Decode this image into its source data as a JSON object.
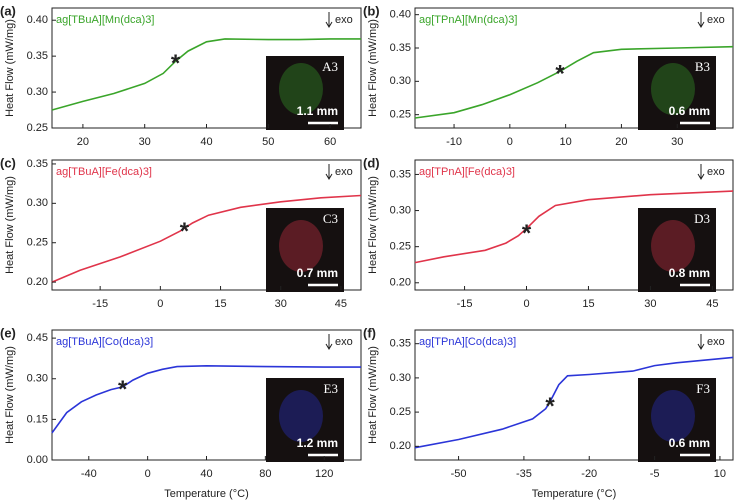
{
  "chart_data": [
    {
      "type": "line",
      "panel": "(a)",
      "title": "ag[TBuA][Mn(dca)3]",
      "color": "#3aa52a",
      "y_label": "Heat Flow (mW/mg)",
      "exo_label": "exo",
      "inset_label": "A3",
      "scale_label": "1.1 mm",
      "x": [
        15,
        20,
        25,
        30,
        33,
        35,
        37,
        40,
        43,
        50,
        55,
        60,
        65
      ],
      "values": [
        0.275,
        0.287,
        0.298,
        0.312,
        0.326,
        0.343,
        0.357,
        0.37,
        0.374,
        0.373,
        0.373,
        0.374,
        0.374
      ],
      "xlim": [
        15,
        65
      ],
      "xticks": [
        20,
        30,
        40,
        50,
        60
      ],
      "ylim": [
        0.25,
        0.417
      ],
      "yticks": [
        0.25,
        {
          "value": 0.3,
          "label": "0.30"
        },
        0.35,
        {
          "value": 0.4,
          "label": "0.40"
        }
      ],
      "annotations": [
        {
          "text": "*",
          "x": 35,
          "y": 0.344
        }
      ]
    },
    {
      "type": "line",
      "panel": "(b)",
      "title": "ag[TPnA][Mn(dca)3]",
      "color": "#3aa52a",
      "y_label": "Heat Flow (mW/mg)",
      "exo_label": "exo",
      "inset_label": "B3",
      "scale_label": "0.6 mm",
      "x": [
        -17,
        -10,
        -5,
        0,
        5,
        9,
        12,
        15,
        20,
        30,
        40
      ],
      "values": [
        0.245,
        0.253,
        0.265,
        0.28,
        0.298,
        0.315,
        0.33,
        0.343,
        0.348,
        0.35,
        0.352
      ],
      "xlim": [
        -17,
        40
      ],
      "xticks": [
        -10,
        0,
        10,
        20,
        30
      ],
      "ylim": [
        0.23,
        0.41
      ],
      "yticks": [
        0.25,
        {
          "value": 0.3,
          "label": "0.30"
        },
        0.35,
        {
          "value": 0.4,
          "label": "0.40"
        }
      ],
      "annotations": [
        {
          "text": "*",
          "x": 9,
          "y": 0.315
        }
      ]
    },
    {
      "type": "line",
      "panel": "(c)",
      "title": "ag[TBuA][Fe(dca)3]",
      "color": "#e0344a",
      "y_label": "Heat Flow (mW/mg)",
      "exo_label": "exo",
      "inset_label": "C3",
      "scale_label": "0.7 mm",
      "x": [
        -27,
        -20,
        -10,
        0,
        5,
        8,
        12,
        20,
        30,
        40,
        50
      ],
      "values": [
        0.2,
        0.215,
        0.232,
        0.252,
        0.265,
        0.275,
        0.285,
        0.295,
        0.302,
        0.307,
        0.31
      ],
      "xlim": [
        -27,
        50
      ],
      "xticks": [
        -15,
        0,
        15,
        30,
        45
      ],
      "ylim": [
        0.19,
        0.355
      ],
      "yticks": [
        {
          "value": 0.2,
          "label": "0.20"
        },
        0.25,
        {
          "value": 0.3,
          "label": "0.30"
        },
        0.35
      ],
      "annotations": [
        {
          "text": "*",
          "x": 6,
          "y": 0.268
        }
      ]
    },
    {
      "type": "line",
      "panel": "(d)",
      "title": "ag[TPnA][Fe(dca)3]",
      "color": "#e0344a",
      "y_label": "Heat Flow (mW/mg)",
      "exo_label": "exo",
      "inset_label": "D3",
      "scale_label": "0.8 mm",
      "x": [
        -27,
        -20,
        -10,
        -5,
        -2,
        0,
        3,
        7,
        15,
        30,
        50
      ],
      "values": [
        0.228,
        0.236,
        0.245,
        0.255,
        0.265,
        0.275,
        0.292,
        0.307,
        0.315,
        0.322,
        0.327
      ],
      "xlim": [
        -27,
        50
      ],
      "xticks": [
        -15,
        0,
        15,
        30,
        45
      ],
      "ylim": [
        0.19,
        0.37
      ],
      "yticks": [
        {
          "value": 0.2,
          "label": "0.20"
        },
        0.25,
        {
          "value": 0.3,
          "label": "0.30"
        },
        0.35
      ],
      "annotations": [
        {
          "text": "*",
          "x": 0,
          "y": 0.272
        }
      ]
    },
    {
      "type": "line",
      "panel": "(e)",
      "title": "ag[TBuA][Co(dca)3]",
      "color": "#2b35d8",
      "y_label": "Heat Flow (mW/mg)",
      "x_label": "Temperature (°C)",
      "exo_label": "exo",
      "inset_label": "E3",
      "scale_label": "1.2 mm",
      "x": [
        -65,
        -55,
        -45,
        -35,
        -25,
        -17,
        -10,
        0,
        10,
        20,
        40,
        80,
        120,
        145
      ],
      "values": [
        0.1,
        0.175,
        0.215,
        0.24,
        0.26,
        0.27,
        0.295,
        0.32,
        0.335,
        0.345,
        0.348,
        0.345,
        0.343,
        0.343
      ],
      "xlim": [
        -65,
        145
      ],
      "xticks": [
        -40,
        0,
        40,
        80,
        120
      ],
      "ylim": [
        0,
        0.48
      ],
      "yticks": [
        {
          "value": 0,
          "label": "0.00"
        },
        0.15,
        {
          "value": 0.3,
          "label": "0.30"
        },
        0.45
      ],
      "annotations": [
        {
          "text": "*",
          "x": -17,
          "y": 0.27
        }
      ]
    },
    {
      "type": "line",
      "panel": "(f)",
      "title": "ag[TPnA][Co(dca)3]",
      "color": "#2b35d8",
      "y_label": "Heat Flow (mW/mg)",
      "x_label": "Temperature (°C)",
      "exo_label": "exo",
      "inset_label": "F3",
      "scale_label": "0.6 mm",
      "x": [
        -60,
        -50,
        -40,
        -33,
        -30,
        -29,
        -27,
        -25,
        -20,
        -10,
        -5,
        0,
        10,
        13
      ],
      "values": [
        0.198,
        0.21,
        0.225,
        0.24,
        0.255,
        0.265,
        0.29,
        0.303,
        0.305,
        0.31,
        0.318,
        0.322,
        0.328,
        0.33
      ],
      "xlim": [
        -60,
        13
      ],
      "xticks": [
        -50,
        -35,
        -20,
        -5,
        10
      ],
      "ylim": [
        0.18,
        0.37
      ],
      "yticks": [
        {
          "value": 0.2,
          "label": "0.20"
        },
        0.25,
        {
          "value": 0.3,
          "label": "0.30"
        },
        0.35
      ],
      "annotations": [
        {
          "text": "*",
          "x": -29,
          "y": 0.262
        }
      ]
    }
  ]
}
